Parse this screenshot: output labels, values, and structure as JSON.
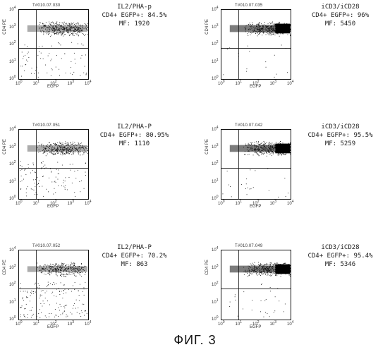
{
  "figure_label": "ФИГ. 3",
  "chart_data": [
    {
      "type": "scatter",
      "plot_label": "T#010.07.030",
      "xlabel": "EGFP",
      "ylabel": "CD4 PE",
      "x_ticks": [
        "10^0",
        "10^1",
        "10^2",
        "10^3",
        "10^4"
      ],
      "y_ticks": [
        "10^0",
        "10^1",
        "10^2",
        "10^3",
        "10^4"
      ],
      "xlim": [
        1,
        10000
      ],
      "ylim": [
        1,
        10000
      ],
      "x_scale": "log",
      "y_scale": "log",
      "quadrant_gate": {
        "x": 10,
        "y": 60
      },
      "caption": [
        "IL2/PHA-p",
        "CD4+ EGFP+: 84.5%",
        "MF:  1920"
      ],
      "condition": "IL2/PHA-p",
      "percent_cd4_egfp_pos": 84.5,
      "mf": 1920
    },
    {
      "type": "scatter",
      "plot_label": "T#010.07.035",
      "xlabel": "EGFP",
      "ylabel": "CD4 PE",
      "x_ticks": [
        "10^0",
        "10^1",
        "10^2",
        "10^3",
        "10^4"
      ],
      "y_ticks": [
        "10^0",
        "10^1",
        "10^2",
        "10^3",
        "10^4"
      ],
      "xlim": [
        1,
        10000
      ],
      "ylim": [
        1,
        10000
      ],
      "x_scale": "log",
      "y_scale": "log",
      "quadrant_gate": {
        "x": 10,
        "y": 60
      },
      "caption": [
        "iCD3/iCD28",
        "CD4+ EGFP+: 96%",
        "MF:  5450"
      ],
      "condition": "iCD3/iCD28",
      "percent_cd4_egfp_pos": 96,
      "mf": 5450
    },
    {
      "type": "scatter",
      "plot_label": "T#010.07.051",
      "xlabel": "EGFP",
      "ylabel": "CD4 PE",
      "x_ticks": [
        "10^0",
        "10^1",
        "10^2",
        "10^3",
        "10^4"
      ],
      "y_ticks": [
        "10^0",
        "10^1",
        "10^2",
        "10^3",
        "10^4"
      ],
      "xlim": [
        1,
        10000
      ],
      "ylim": [
        1,
        10000
      ],
      "x_scale": "log",
      "y_scale": "log",
      "quadrant_gate": {
        "x": 10,
        "y": 60
      },
      "caption": [
        "IL2/PHA-P",
        "CD4+ EGFP+: 80.95%",
        "MF:  1110"
      ],
      "condition": "IL2/PHA-P",
      "percent_cd4_egfp_pos": 80.95,
      "mf": 1110
    },
    {
      "type": "scatter",
      "plot_label": "T#010.07.042",
      "xlabel": "EGFP",
      "ylabel": "CD4 PE",
      "x_ticks": [
        "10^0",
        "10^1",
        "10^2",
        "10^3",
        "10^4"
      ],
      "y_ticks": [
        "10^0",
        "10^1",
        "10^2",
        "10^3",
        "10^4"
      ],
      "xlim": [
        1,
        10000
      ],
      "ylim": [
        1,
        10000
      ],
      "x_scale": "log",
      "y_scale": "log",
      "quadrant_gate": {
        "x": 10,
        "y": 60
      },
      "caption": [
        "iCD3/iCD28",
        "CD4+ EGFP+: 95.5%",
        "MF:  5259"
      ],
      "condition": "iCD3/iCD28",
      "percent_cd4_egfp_pos": 95.5,
      "mf": 5259
    },
    {
      "type": "scatter",
      "plot_label": "T#010.07.052",
      "xlabel": "EGFP",
      "ylabel": "CD4 PE",
      "x_ticks": [
        "10^0",
        "10^1",
        "10^2",
        "10^3",
        "10^4"
      ],
      "y_ticks": [
        "10^0",
        "10^1",
        "10^2",
        "10^3",
        "10^4"
      ],
      "xlim": [
        1,
        10000
      ],
      "ylim": [
        1,
        10000
      ],
      "x_scale": "log",
      "y_scale": "log",
      "quadrant_gate": {
        "x": 10,
        "y": 60
      },
      "caption": [
        "IL2/PHA-P",
        "CD4+ EGFP+: 70.2%",
        "MF:  863"
      ],
      "condition": "IL2/PHA-P",
      "percent_cd4_egfp_pos": 70.2,
      "mf": 863
    },
    {
      "type": "scatter",
      "plot_label": "T#010.07.049",
      "xlabel": "EGFP",
      "ylabel": "CD4 PE",
      "x_ticks": [
        "10^0",
        "10^1",
        "10^2",
        "10^3",
        "10^4"
      ],
      "y_ticks": [
        "10^0",
        "10^1",
        "10^2",
        "10^3",
        "10^4"
      ],
      "xlim": [
        1,
        10000
      ],
      "ylim": [
        1,
        10000
      ],
      "x_scale": "log",
      "y_scale": "log",
      "quadrant_gate": {
        "x": 10,
        "y": 60
      },
      "caption": [
        "iCD3/iCD28",
        "CD4+ EGFP+: 95.4%",
        "MF:  5346"
      ],
      "condition": "iCD3/iCD28",
      "percent_cd4_egfp_pos": 95.4,
      "mf": 5346
    }
  ]
}
